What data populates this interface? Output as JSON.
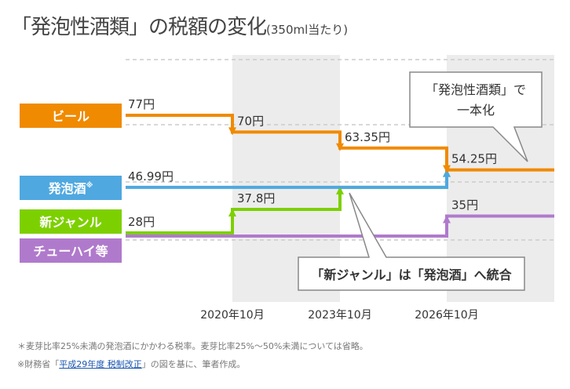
{
  "title": "「発泡性酒類」の税額の変化",
  "subtitle": "(350ml当たり)",
  "chart_data": {
    "type": "line",
    "step": true,
    "categories": [
      "",
      "2020年10月",
      "2023年10月",
      "2026年10月"
    ],
    "unit": "円",
    "series": [
      {
        "name": "ビール",
        "color": "#f08a00",
        "values": [
          77,
          70,
          63.35,
          54.25
        ],
        "labels": [
          "77円",
          "70円",
          "63.35円",
          "54.25円"
        ]
      },
      {
        "name": "発泡酒",
        "mark": "※",
        "color": "#4fa8e0",
        "values": [
          46.99,
          46.99,
          46.99,
          54.25
        ],
        "labels": [
          "46.99円",
          "",
          "",
          ""
        ]
      },
      {
        "name": "新ジャンル",
        "color": "#7dd000",
        "values": [
          28,
          37.8,
          46.99,
          54.25
        ],
        "labels": [
          "28円",
          "37.8円",
          "",
          ""
        ]
      },
      {
        "name": "チューハイ等",
        "color": "#b07acc",
        "values": [
          28,
          28,
          28,
          35
        ],
        "labels": [
          "",
          "",
          "",
          "35円"
        ]
      }
    ],
    "annotations": [
      "「発泡性酒類」で",
      "一本化",
      "「新ジャンル」は「発泡酒」へ統合"
    ]
  },
  "notes": {
    "note1": "＊麦芽比率25%未満の発泡酒にかかわる税率。麦芽比率25%～50%未満については省略。",
    "note2_prefix": "※財務省「",
    "note2_link": "平成29年度 税制改正",
    "note2_suffix": "」の図を基に、筆者作成。"
  }
}
